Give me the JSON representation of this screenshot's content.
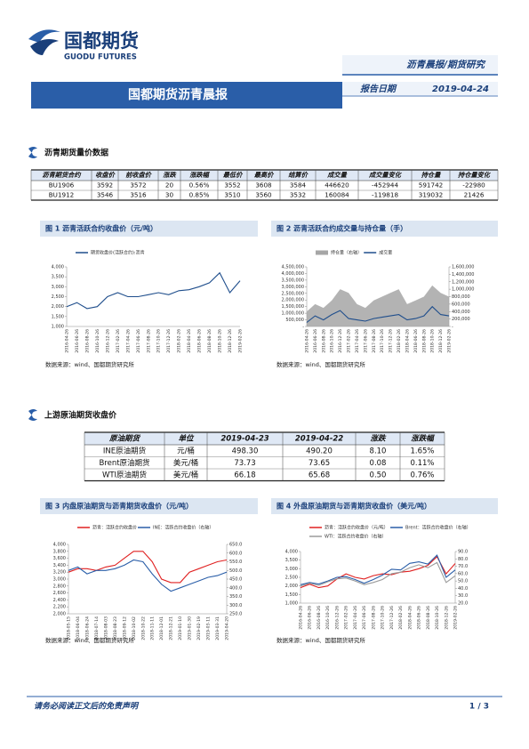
{
  "header": {
    "logo_name": "国都期货",
    "logo_en": "GUODU FUTURES",
    "series_tag": "沥青晨报/期货研究",
    "title": "国都期货沥青晨报",
    "date_label": "报告日期",
    "date": "2019-04-24"
  },
  "section1": {
    "title": "沥青期货量价数据",
    "table": {
      "header": [
        "沥青期货合约",
        "收盘价",
        "前收盘价",
        "涨跌",
        "涨跌幅",
        "最低价",
        "最高价",
        "结算价",
        "成交量",
        "成交量变化",
        "持仓量",
        "持仓量变化"
      ],
      "rows": [
        [
          "BU1906",
          "3592",
          "3572",
          "20",
          "0.56%",
          "3552",
          "3608",
          "3584",
          "446620",
          "-452944",
          "591742",
          "-22980"
        ],
        [
          "BU1912",
          "3546",
          "3516",
          "30",
          "0.85%",
          "3510",
          "3560",
          "3532",
          "160084",
          "-119818",
          "319032",
          "21426"
        ]
      ]
    }
  },
  "section2": {
    "title": "上游原油期货收盘价",
    "table": {
      "header": [
        "原油期货",
        "单位",
        "2019-04-23",
        "2019-04-22",
        "涨跌",
        "涨跌幅"
      ],
      "rows": [
        [
          "INE原油期货",
          "元/桶",
          "498.30",
          "490.20",
          "8.10",
          "1.65%"
        ],
        [
          "Brent原油期货",
          "美元/桶",
          "73.73",
          "73.65",
          "0.08",
          "0.11%"
        ],
        [
          "WTI原油期货",
          "美元/桶",
          "66.18",
          "65.68",
          "0.50",
          "0.76%"
        ]
      ]
    }
  },
  "chart_data": [
    {
      "type": "line",
      "title": "图 1  沥青活跃合约收盘价（元/吨）",
      "source": "数据来源：wind、国都期货研究所",
      "categories": [
        "2016-04-26",
        "2016-06-26",
        "2016-08-26",
        "2016-10-26",
        "2016-12-26",
        "2017-02-26",
        "2017-04-26",
        "2017-06-26",
        "2017-08-26",
        "2017-10-26",
        "2017-12-26",
        "2018-02-26",
        "2018-04-26",
        "2018-06-26",
        "2018-08-26",
        "2018-10-26",
        "2018-12-26",
        "2019-02-26"
      ],
      "series": [
        {
          "name": "期货收盘价(活跃合约):沥青",
          "color": "#1f4e8c",
          "values": [
            2000,
            2200,
            1900,
            2000,
            2500,
            2700,
            2500,
            2500,
            2600,
            2700,
            2600,
            2800,
            2850,
            3000,
            3200,
            3700,
            2700,
            3300
          ]
        }
      ],
      "ylim": [
        1000,
        4000
      ],
      "yticks": [
        {
          "value": 1000,
          "label": "1,000"
        },
        {
          "value": 1500,
          "label": "1,500"
        },
        {
          "value": 2000,
          "label": "2,000"
        },
        {
          "value": 2500,
          "label": "2,500"
        },
        {
          "value": 3000,
          "label": "3,000"
        },
        {
          "value": 3500,
          "label": "3,500"
        },
        {
          "value": 4000,
          "label": "4,000"
        }
      ]
    },
    {
      "type": "line",
      "title": "图 2  沥青活跃合约成交量与持仓量（手）",
      "source": "数据来源：wind、国都期货研究所",
      "categories": [
        "2016-04-26",
        "2016-06-26",
        "2016-08-26",
        "2016-10-26",
        "2016-12-26",
        "2017-02-26",
        "2017-04-26",
        "2017-06-26",
        "2017-08-26",
        "2017-10-26",
        "2017-12-26",
        "2018-02-26",
        "2018-04-26",
        "2018-06-26",
        "2018-08-26",
        "2018-10-26",
        "2018-12-26",
        "2019-02-26"
      ],
      "series": [
        {
          "name": "持仓量（右轴）",
          "color": "#a6a6a6",
          "axis": "y2",
          "area": true,
          "values": [
            400000,
            600000,
            500000,
            700000,
            1000000,
            900000,
            600000,
            500000,
            700000,
            800000,
            900000,
            1000000,
            600000,
            700000,
            800000,
            1100000,
            900000,
            800000
          ]
        },
        {
          "name": "成交量",
          "color": "#1f4e8c",
          "values": [
            300000,
            800000,
            500000,
            900000,
            1200000,
            600000,
            500000,
            400000,
            600000,
            700000,
            800000,
            900000,
            500000,
            600000,
            800000,
            1500000,
            900000,
            800000
          ]
        }
      ],
      "ylim": [
        0,
        4500000
      ],
      "yticks": [
        {
          "value": 0,
          "label": "-"
        },
        {
          "value": 500000,
          "label": "500,000"
        },
        {
          "value": 1000000,
          "label": "1,000,000"
        },
        {
          "value": 1500000,
          "label": "1,500,000"
        },
        {
          "value": 2000000,
          "label": "2,000,000"
        },
        {
          "value": 2500000,
          "label": "2,500,000"
        },
        {
          "value": 3000000,
          "label": "3,000,000"
        },
        {
          "value": 3500000,
          "label": "3,500,000"
        },
        {
          "value": 4000000,
          "label": "4,000,000"
        },
        {
          "value": 4500000,
          "label": "4,500,000"
        }
      ],
      "y2lim": [
        0,
        1600000
      ],
      "y2ticks": [
        {
          "value": 0,
          "label": "-"
        },
        {
          "value": 200000,
          "label": "200,000"
        },
        {
          "value": 400000,
          "label": "400,000"
        },
        {
          "value": 600000,
          "label": "600,000"
        },
        {
          "value": 800000,
          "label": "800,000"
        },
        {
          "value": 1000000,
          "label": "1,000,000"
        },
        {
          "value": 1200000,
          "label": "1,200,000"
        },
        {
          "value": 1400000,
          "label": "1,400,000"
        },
        {
          "value": 1600000,
          "label": "1,600,000"
        }
      ]
    },
    {
      "type": "line",
      "title": "图 3  内盘原油期货与沥青期货收盘价（元/吨）",
      "source": "数据来源：wind、国都期货研究所",
      "categories": [
        "2018-05-15",
        "2018-06-04",
        "2018-06-24",
        "2018-07-14",
        "2018-08-03",
        "2018-08-23",
        "2018-09-12",
        "2018-10-02",
        "2018-10-22",
        "2018-11-11",
        "2018-12-01",
        "2018-12-21",
        "2019-01-10",
        "2019-01-30",
        "2019-02-19",
        "2019-03-11",
        "2019-03-31",
        "2019-04-20"
      ],
      "series": [
        {
          "name": "沥青：活跃合约收盘价",
          "color": "#e02020",
          "values": [
            3200,
            3300,
            3300,
            3250,
            3350,
            3400,
            3600,
            3800,
            3800,
            3500,
            3000,
            2900,
            2900,
            3200,
            3300,
            3400,
            3500,
            3550
          ]
        },
        {
          "name": "INE：活跃合约收盘价（右轴）",
          "color": "#2a5ea8",
          "axis": "y2",
          "values": [
            500,
            520,
            480,
            500,
            500,
            510,
            530,
            560,
            550,
            480,
            420,
            380,
            400,
            420,
            440,
            460,
            470,
            490
          ]
        }
      ],
      "ylim": [
        2000,
        4000
      ],
      "yticks": [
        {
          "value": 2000,
          "label": "2,000"
        },
        {
          "value": 2200,
          "label": "2,200"
        },
        {
          "value": 2400,
          "label": "2,400"
        },
        {
          "value": 2600,
          "label": "2,600"
        },
        {
          "value": 2800,
          "label": "2,800"
        },
        {
          "value": 3000,
          "label": "3,000"
        },
        {
          "value": 3200,
          "label": "3,200"
        },
        {
          "value": 3400,
          "label": "3,400"
        },
        {
          "value": 3600,
          "label": "3,600"
        },
        {
          "value": 3800,
          "label": "3,800"
        },
        {
          "value": 4000,
          "label": "4,000"
        }
      ],
      "y2lim": [
        250,
        650
      ],
      "y2ticks": [
        {
          "value": 250,
          "label": "250.0"
        },
        {
          "value": 300,
          "label": "300.0"
        },
        {
          "value": 350,
          "label": "350.0"
        },
        {
          "value": 400,
          "label": "400.0"
        },
        {
          "value": 450,
          "label": "450.0"
        },
        {
          "value": 500,
          "label": "500.0"
        },
        {
          "value": 550,
          "label": "550.0"
        },
        {
          "value": 600,
          "label": "600.0"
        },
        {
          "value": 650,
          "label": "650.0"
        }
      ]
    },
    {
      "type": "line",
      "title": "图 4  外盘原油期货与沥青期货收盘价（美元/吨）",
      "source": "数据来源：wind、国都期货研究所",
      "categories": [
        "2016-04-26",
        "2016-06-26",
        "2016-08-26",
        "2016-10-26",
        "2016-12-26",
        "2017-02-26",
        "2017-04-26",
        "2017-06-26",
        "2017-08-26",
        "2017-10-26",
        "2017-12-26",
        "2018-02-26",
        "2018-04-26",
        "2018-06-26",
        "2018-08-26",
        "2018-10-26",
        "2018-12-26",
        "2019-02-26"
      ],
      "series": [
        {
          "name": "沥青：活跃合约收盘价（元/吨）",
          "color": "#e02020",
          "values": [
            1900,
            2100,
            1900,
            2000,
            2400,
            2700,
            2500,
            2400,
            2600,
            2700,
            2650,
            2800,
            2850,
            3000,
            3200,
            3700,
            2700,
            3300
          ]
        },
        {
          "name": "Brent：活跃合约收盘价（右轴）",
          "color": "#2a5ea8",
          "axis": "y2",
          "values": [
            45,
            48,
            46,
            50,
            55,
            56,
            52,
            47,
            52,
            58,
            66,
            65,
            74,
            76,
            73,
            85,
            55,
            65
          ]
        },
        {
          "name": "WTI：活跃合约收盘价（右轴）",
          "color": "#9a9a9a",
          "axis": "y2",
          "values": [
            43,
            47,
            44,
            49,
            53,
            54,
            50,
            45,
            48,
            52,
            60,
            62,
            68,
            72,
            68,
            75,
            48,
            57
          ]
        }
      ],
      "ylim": [
        1000,
        4000
      ],
      "yticks": [
        {
          "value": 1000,
          "label": "1,000"
        },
        {
          "value": 1500,
          "label": "1,500"
        },
        {
          "value": 2000,
          "label": "2,000"
        },
        {
          "value": 2500,
          "label": "2,500"
        },
        {
          "value": 3000,
          "label": "3,000"
        },
        {
          "value": 3500,
          "label": "3,500"
        },
        {
          "value": 4000,
          "label": "4,000"
        }
      ],
      "y2lim": [
        20,
        90
      ],
      "y2ticks": [
        {
          "value": 20,
          "label": "20.0"
        },
        {
          "value": 30,
          "label": "30.0"
        },
        {
          "value": 40,
          "label": "40.0"
        },
        {
          "value": 50,
          "label": "50.0"
        },
        {
          "value": 60,
          "label": "60.0"
        },
        {
          "value": 70,
          "label": "70.0"
        },
        {
          "value": 80,
          "label": "80.0"
        },
        {
          "value": 90,
          "label": "90.0"
        }
      ]
    }
  ],
  "footer": {
    "disclaimer": "请务必阅读正文后的免责声明",
    "page": "1 / 3"
  }
}
